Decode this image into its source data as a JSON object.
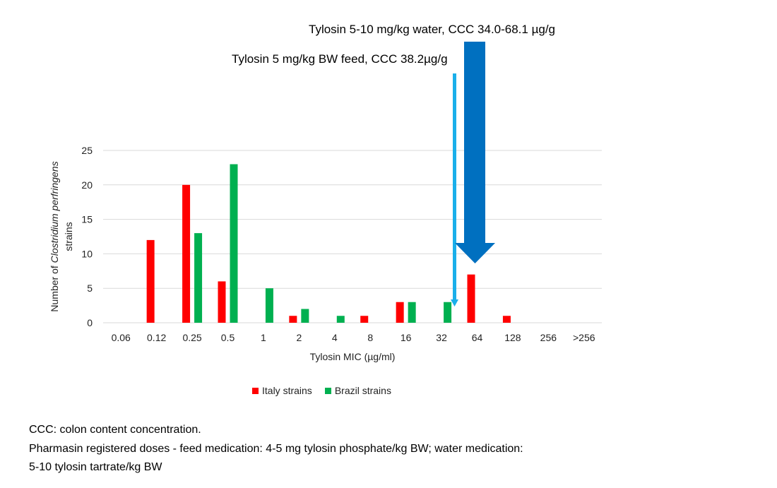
{
  "chart_data": {
    "type": "bar",
    "title": "",
    "xlabel": "Tylosin MIC (µg/ml)",
    "ylabel_prefix": "Number of ",
    "ylabel_italic": "Clostridium perfringens",
    "ylabel_line2": "strains",
    "ylim": [
      0,
      25
    ],
    "yticks": [
      0,
      5,
      10,
      15,
      20,
      25
    ],
    "grid": true,
    "legend_position": "bottom",
    "categories": [
      "0.06",
      "0.12",
      "0.25",
      "0.5",
      "1",
      "2",
      "4",
      "8",
      "16",
      "32",
      "64",
      "128",
      "256",
      ">256"
    ],
    "series": [
      {
        "name": "Italy strains",
        "color": "#ff0000",
        "values": [
          0,
          12,
          20,
          6,
          0,
          1,
          0,
          1,
          3,
          0,
          7,
          1,
          0,
          0
        ]
      },
      {
        "name": "Brazil strains",
        "color": "#00b050",
        "values": [
          0,
          0,
          13,
          23,
          5,
          2,
          1,
          0,
          3,
          3,
          0,
          0,
          0,
          0
        ]
      }
    ],
    "annotations": [
      {
        "text": "Tylosin 5-10 mg/kg water, CCC 34.0-68.1 µg/g",
        "arrow": "thick",
        "color": "#0070c0",
        "points_to_mic": 64
      },
      {
        "text": "Tylosin 5 mg/kg BW feed, CCC 38.2µg/g",
        "arrow": "thin",
        "color": "#1aafea",
        "points_to_mic": 38.2
      }
    ]
  },
  "footnotes": [
    "CCC: colon content concentration.",
    "Pharmasin registered doses - feed medication: 4-5 mg tylosin phosphate/kg BW; water medication:",
    "5-10 tylosin tartrate/kg BW"
  ]
}
